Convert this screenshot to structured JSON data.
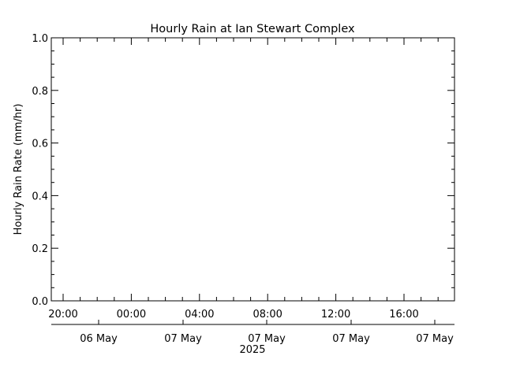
{
  "chart_data": {
    "type": "line",
    "title": "Hourly Rain at Ian Stewart Complex",
    "xlabel": "",
    "ylabel": "Hourly Rain Rate (mm/hr)",
    "ylim": [
      0.0,
      1.0
    ],
    "y_ticks": [
      "0.0",
      "0.2",
      "0.4",
      "0.6",
      "0.8",
      "1.0"
    ],
    "x_ticks": [
      "20:00",
      "00:00",
      "04:00",
      "08:00",
      "12:00",
      "16:00"
    ],
    "date_labels": [
      "06 May",
      "07 May",
      "07 May",
      "07 May",
      "07 May"
    ],
    "year_label": "2025",
    "series": [],
    "grid": false,
    "legend": "none"
  },
  "colors": {
    "axis": "#000000",
    "background": "#ffffff"
  }
}
